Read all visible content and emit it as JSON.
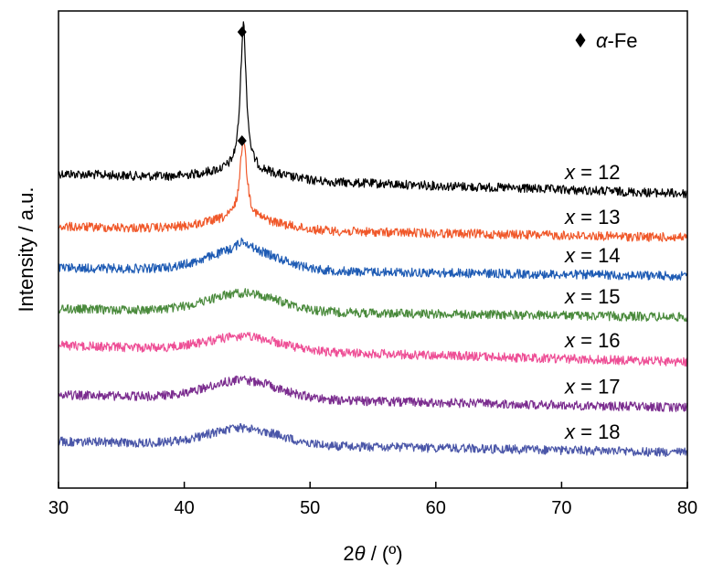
{
  "chart_data": {
    "type": "line",
    "xlabel_prefix": "2",
    "xlabel_symbol": "θ",
    "xlabel_suffix": " / (º)",
    "ylabel": "Intensity / a.u.",
    "xlim": [
      30,
      80
    ],
    "xticks": [
      "30",
      "40",
      "50",
      "60",
      "70",
      "80"
    ],
    "legend": {
      "marker": "diamond",
      "symbol": "α",
      "text": "-Fe",
      "placement": "top-right"
    },
    "peak_position": 44.7,
    "series": [
      {
        "name": "x = 12",
        "var": "x",
        "label": " = 12",
        "color": "#000000",
        "baseline": 190,
        "end": 212,
        "bump": 10,
        "peak": 160,
        "peak_width": 0.28,
        "noise": 5,
        "marker_height": 203
      },
      {
        "name": "x = 13",
        "var": "x",
        "label": " = 13",
        "color": "#f0582a",
        "baseline": 248,
        "end": 260,
        "bump": 12,
        "peak": 88,
        "peak_width": 0.32,
        "noise": 5,
        "marker_height": 250
      },
      {
        "name": "x = 14",
        "var": "x",
        "label": " = 14",
        "color": "#1e5bb4",
        "baseline": 293,
        "end": 302,
        "bump": 22,
        "peak": 10,
        "peak_width": 0.6,
        "noise": 5
      },
      {
        "name": "x = 15",
        "var": "x",
        "label": " = 15",
        "color": "#4a8a3c",
        "baseline": 338,
        "end": 347,
        "bump": 20,
        "peak": 0,
        "peak_width": 1,
        "noise": 5
      },
      {
        "name": "x = 16",
        "var": "x",
        "label": " = 16",
        "color": "#ee4f96",
        "baseline": 378,
        "end": 396,
        "bump": 15,
        "peak": 0,
        "peak_width": 1,
        "noise": 5
      },
      {
        "name": "x = 17",
        "var": "x",
        "label": " = 17",
        "color": "#7b2d8f",
        "baseline": 432,
        "end": 446,
        "bump": 20,
        "peak": 0,
        "peak_width": 1,
        "noise": 5
      },
      {
        "name": "x = 18",
        "var": "x",
        "label": " = 18",
        "color": "#4a56a8",
        "baseline": 483,
        "end": 495,
        "bump": 18,
        "peak": 0,
        "peak_width": 1,
        "noise": 5
      }
    ]
  }
}
